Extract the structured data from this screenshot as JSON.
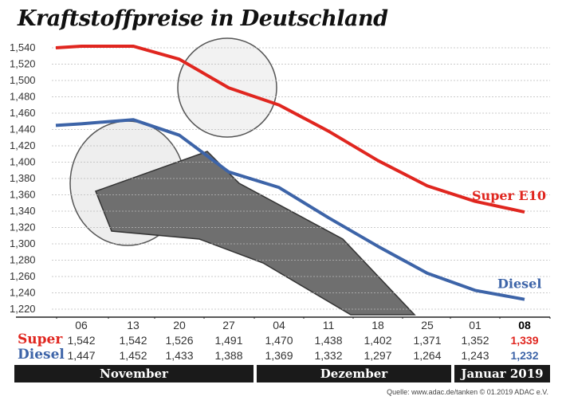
{
  "chart_data": {
    "type": "line",
    "title": "Kraftstoffpreise in Deutschland",
    "categories": [
      "06",
      "13",
      "20",
      "27",
      "04",
      "11",
      "18",
      "25",
      "01",
      "08"
    ],
    "months": [
      "November",
      "Dezember",
      "Januar 2019"
    ],
    "series": [
      {
        "name": "Super E10",
        "row_label": "Super",
        "color": "#e0261f",
        "values": [
          1.542,
          1.542,
          1.526,
          1.491,
          1.47,
          1.438,
          1.402,
          1.371,
          1.352,
          1.339
        ]
      },
      {
        "name": "Diesel",
        "row_label": "Diesel",
        "color": "#3d64a8",
        "values": [
          1.447,
          1.452,
          1.433,
          1.388,
          1.369,
          1.332,
          1.297,
          1.264,
          1.243,
          1.232
        ]
      }
    ],
    "value_labels": {
      "Super": [
        "1,542",
        "1,542",
        "1,526",
        "1,491",
        "1,470",
        "1,438",
        "1,402",
        "1,371",
        "1,352",
        "1,339"
      ],
      "Diesel": [
        "1,447",
        "1,452",
        "1,433",
        "1,388",
        "1,369",
        "1,332",
        "1,297",
        "1,264",
        "1,243",
        "1,232"
      ]
    },
    "yticks": [
      "1,540",
      "1,520",
      "1,500",
      "1,480",
      "1,460",
      "1,440",
      "1,420",
      "1,400",
      "1,380",
      "1,360",
      "1,340",
      "1,320",
      "1,300",
      "1,280",
      "1,260",
      "1,240",
      "1,220"
    ],
    "ylim": [
      1.22,
      1.54
    ],
    "grid": true,
    "xlabel": "",
    "ylabel": ""
  },
  "source": "Quelle: www.adac.de/tanken   © 01.2019  ADAC e.V."
}
